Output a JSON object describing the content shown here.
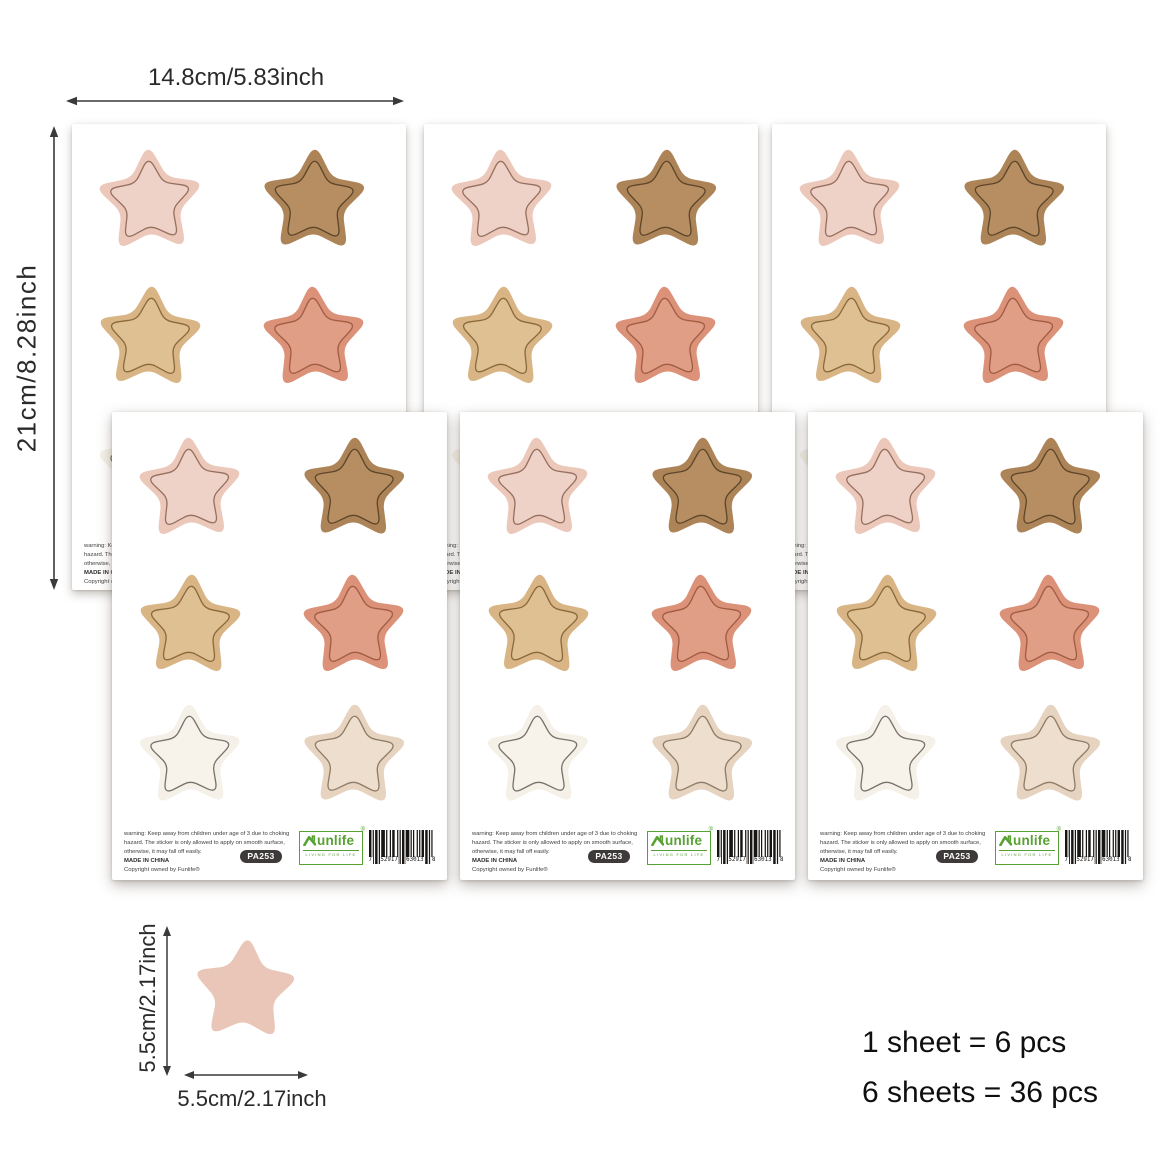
{
  "annotations": {
    "sheet_width_label": "14.8cm/5.83inch",
    "sheet_height_label": "21cm/8.28inch",
    "star_height_label": "5.5cm/2.17inch",
    "star_width_label": "5.5cm/2.17inch",
    "count_line_1": "1 sheet = 6 pcs",
    "count_line_2": "6 sheets = 36 pcs"
  },
  "sheet": {
    "warning_line_1": "warning: Keep away from children under age of 3 due to choking",
    "warning_line_2": "hazard. The sticker is only allowed to apply on smooth surface,",
    "warning_line_3": "otherwise, it may fall off easily.",
    "made_in": "MADE IN CHINA",
    "copyright": "Copyright owned by Funlife®",
    "sku": "PA253",
    "brand": "unlife",
    "brand_reg": "®",
    "brand_tagline": "LIVING FOR LIFE",
    "barcode_digits": "7 52917 63013 8"
  },
  "stars": {
    "sheets_count": 6,
    "stars_per_sheet": 6,
    "colors": [
      {
        "name": "blush-pink",
        "fill": "#ecc8ba",
        "inner": "#eed2c7",
        "line": "#96705f"
      },
      {
        "name": "camel-brown",
        "fill": "#ad8457",
        "inner": "#b68e62",
        "line": "#5e462a"
      },
      {
        "name": "sand-tan",
        "fill": "#d9b484",
        "inner": "#dec093",
        "line": "#8a6a3b"
      },
      {
        "name": "terracotta",
        "fill": "#dc9278",
        "inner": "#e09e86",
        "line": "#a05c43"
      },
      {
        "name": "ivory-white",
        "fill": "#f5f1e8",
        "inner": "#f7f3eb",
        "line": "#77726a"
      },
      {
        "name": "light-beige",
        "fill": "#e6d3c0",
        "inner": "#eddecd",
        "line": "#8f7c66"
      }
    ],
    "single_star_color": "#e9c6b8"
  },
  "colors": {
    "brand_green": "#58a233",
    "sku_badge_bg": "#3d3a39",
    "arrow": "#3a3a3a"
  }
}
